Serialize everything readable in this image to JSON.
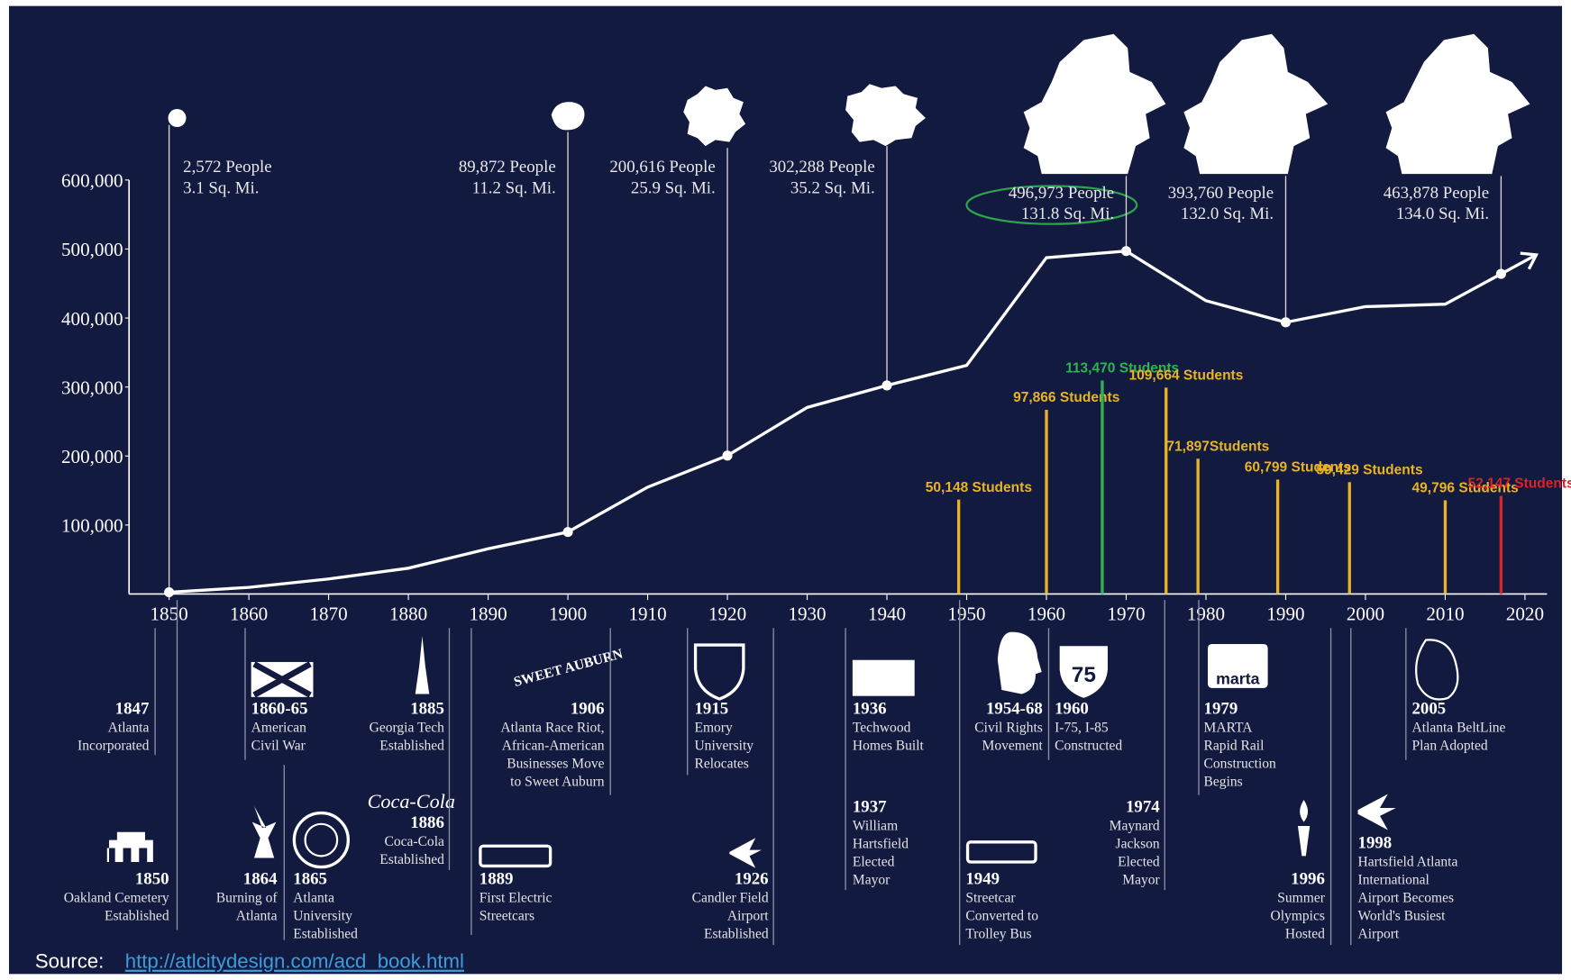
{
  "chart_data": {
    "type": "line",
    "x": [
      1850,
      1860,
      1870,
      1880,
      1890,
      1900,
      1910,
      1920,
      1930,
      1940,
      1950,
      1960,
      1970,
      1980,
      1990,
      2000,
      2010,
      2017
    ],
    "values": [
      2572,
      9554,
      21789,
      37409,
      65533,
      89872,
      154839,
      200616,
      270366,
      302288,
      331314,
      487455,
      496973,
      425022,
      393760,
      416474,
      420003,
      463878
    ],
    "color": "#ffffff",
    "xlim": [
      1850,
      2020
    ],
    "xticks": [
      1850,
      1860,
      1870,
      1880,
      1890,
      1900,
      1910,
      1920,
      1930,
      1940,
      1950,
      1960,
      1970,
      1980,
      1990,
      2000,
      2010,
      2020
    ],
    "ylim": [
      0,
      600000
    ],
    "yticks": [
      {
        "value": 100000,
        "label": "100,000"
      },
      {
        "value": 200000,
        "label": "200,000"
      },
      {
        "value": 300000,
        "label": "300,000"
      },
      {
        "value": 400000,
        "label": "400,000"
      },
      {
        "value": 500000,
        "label": "500,000"
      },
      {
        "value": 600000,
        "label": "600,000"
      }
    ],
    "annotations": [
      {
        "x": 1850,
        "lines": [
          "2,572 People",
          "3.1 Sq. Mi."
        ]
      },
      {
        "x": 1900,
        "lines": [
          "89,872 People",
          "11.2 Sq. Mi."
        ]
      },
      {
        "x": 1920,
        "lines": [
          "200,616 People",
          "25.9 Sq. Mi."
        ]
      },
      {
        "x": 1940,
        "lines": [
          "302,288 People",
          "35.2 Sq. Mi."
        ]
      },
      {
        "x": 1970,
        "lines": [
          "496,973 People",
          "131.8 Sq. Mi."
        ]
      },
      {
        "x": 1990,
        "lines": [
          "393,760 People",
          "132.0 Sq. Mi."
        ]
      },
      {
        "x": 2017,
        "lines": [
          "463,878 People",
          "134.0 Sq. Mi."
        ]
      }
    ],
    "bars": {
      "x": [
        1949,
        1960,
        1967,
        1975,
        1979,
        1989,
        1998,
        2010,
        2017
      ],
      "values": [
        50148,
        97866,
        113470,
        109664,
        71897,
        60799,
        59429,
        49796,
        52147
      ],
      "value_labels": [
        "50,148 Students",
        "97,866 Students",
        "113,470 Students",
        "109,664 Students",
        "71,897Students",
        "60,799 Students",
        "59,429 Students",
        "49,796 Students",
        "52,147 Students"
      ],
      "colors": [
        "#e8b425",
        "#e8b425",
        "#2fb34f",
        "#e8b425",
        "#e8b425",
        "#e8b425",
        "#e8b425",
        "#e8b425",
        "#d8232a"
      ]
    },
    "y2lim": [
      0,
      220000
    ]
  },
  "timeline_events": [
    {
      "year": "1847",
      "lines": [
        "Atlanta",
        "Incorporated"
      ]
    },
    {
      "year": "1850",
      "lines": [
        "Oakland Cemetery",
        "Established"
      ]
    },
    {
      "year": "1860-65",
      "lines": [
        "American",
        "Civil War"
      ]
    },
    {
      "year": "1864",
      "lines": [
        "Burning of",
        "Atlanta"
      ]
    },
    {
      "year": "1865",
      "lines": [
        "Atlanta",
        "University",
        "Established"
      ]
    },
    {
      "year": "1885",
      "lines": [
        "Georgia Tech",
        "Established"
      ]
    },
    {
      "year": "1886",
      "lines": [
        "Coca-Cola",
        "Established"
      ]
    },
    {
      "year": "1906",
      "lines": [
        "Atlanta Race Riot,",
        "African-American",
        "Businesses Move",
        "to Sweet Auburn"
      ]
    },
    {
      "year": "1889",
      "lines": [
        "First Electric",
        "Streetcars"
      ]
    },
    {
      "year": "1915",
      "lines": [
        "Emory",
        "University",
        "Relocates"
      ]
    },
    {
      "year": "1926",
      "lines": [
        "Candler Field",
        "Airport",
        "Established"
      ]
    },
    {
      "year": "1936",
      "lines": [
        "Techwood",
        "Homes Built"
      ]
    },
    {
      "year": "1937",
      "lines": [
        "William",
        "Hartsfield",
        "Elected",
        "Mayor"
      ]
    },
    {
      "year": "1954-68",
      "lines": [
        "Civil Rights",
        "Movement"
      ]
    },
    {
      "year": "1960",
      "lines": [
        "I-75, I-85",
        "Constructed"
      ]
    },
    {
      "year": "1949",
      "lines": [
        "Streetcar",
        "Converted to",
        "Trolley Bus"
      ]
    },
    {
      "year": "1974",
      "lines": [
        "Maynard",
        "Jackson",
        "Elected",
        "Mayor"
      ]
    },
    {
      "year": "1979",
      "lines": [
        "MARTA",
        "Rapid Rail",
        "Construction",
        "Begins"
      ]
    },
    {
      "year": "1996",
      "lines": [
        "Summer",
        "Olympics",
        "Hosted"
      ]
    },
    {
      "year": "1998",
      "lines": [
        "Hartsfield Atlanta",
        "International",
        "Airport Becomes",
        "World's Busiest",
        "Airport"
      ]
    },
    {
      "year": "2005",
      "lines": [
        "Atlanta BeltLine",
        "Plan Adopted"
      ]
    }
  ],
  "icon_texts": {
    "coca_cola": "Coca-Cola",
    "sweet_auburn": "SWEET AUBURN",
    "interstate": "75",
    "marta": "marta"
  },
  "source": {
    "label": "Source:",
    "link": "http://atlcitydesign.com/acd_book.html"
  }
}
